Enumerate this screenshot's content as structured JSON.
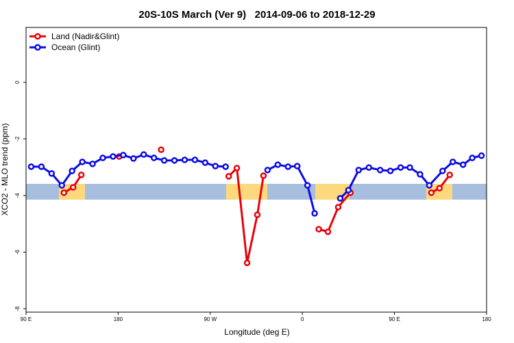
{
  "chart_data": {
    "type": "line",
    "title": "20S-10S March (Ver 9)   2014-09-06 to 2018-12-29",
    "x_label": "Longitude (deg E)",
    "y_label": "XCO2 - MLO trend (ppm)",
    "xlim": [
      90,
      540
    ],
    "xticks": [
      {
        "value": 90,
        "label": "90 E"
      },
      180,
      {
        "value": 270,
        "label": "90 W"
      },
      {
        "value": 360,
        "label": "0"
      },
      {
        "value": 450,
        "label": "90 E"
      },
      {
        "value": 540,
        "label": "180"
      }
    ],
    "ylim": [
      -8.12,
      1.94
    ],
    "yticks": [
      -8,
      -6,
      -4,
      -2,
      0
    ],
    "legend": "top-left",
    "series": [
      {
        "name": "Land (Nadir&Glint)",
        "color": "#e8000b",
        "x": [
          127,
          136,
          144,
          null,
          181,
          null,
          222,
          null,
          288,
          296,
          306,
          316,
          322,
          null,
          376,
          385,
          395,
          407,
          null,
          486,
          494,
          504
        ],
        "values": [
          -3.9,
          -3.71,
          -3.27,
          null,
          -2.62,
          null,
          -2.38,
          null,
          -3.32,
          -3.03,
          -6.38,
          -4.68,
          -3.3,
          null,
          -5.19,
          -5.28,
          -4.41,
          -3.9,
          null,
          -3.9,
          -3.74,
          -3.27
        ]
      },
      {
        "name": "Ocean (Glint)",
        "color": "#0a0ae6",
        "x": [
          95,
          105,
          115,
          125,
          135,
          145,
          155,
          165,
          175,
          185,
          195,
          205,
          215,
          225,
          235,
          245,
          255,
          265,
          275,
          285,
          null,
          326,
          336,
          346,
          355,
          365,
          372,
          null,
          397,
          405,
          415,
          425,
          436,
          446,
          456,
          465,
          475,
          484,
          497,
          507,
          517,
          526,
          535
        ],
        "values": [
          -2.98,
          -2.98,
          -3.22,
          -3.64,
          -3.13,
          -2.81,
          -2.88,
          -2.67,
          -2.62,
          -2.57,
          -2.69,
          -2.55,
          -2.67,
          -2.76,
          -2.76,
          -2.74,
          -2.74,
          -2.84,
          -2.96,
          -2.98,
          null,
          -3.1,
          -2.91,
          -2.98,
          -2.96,
          -3.64,
          -4.63,
          null,
          -4.1,
          -3.81,
          -3.1,
          -3.01,
          -3.1,
          -3.13,
          -3.01,
          -3.01,
          -3.25,
          -3.64,
          -3.13,
          -2.81,
          -2.91,
          -2.67,
          -2.59
        ]
      }
    ]
  }
}
